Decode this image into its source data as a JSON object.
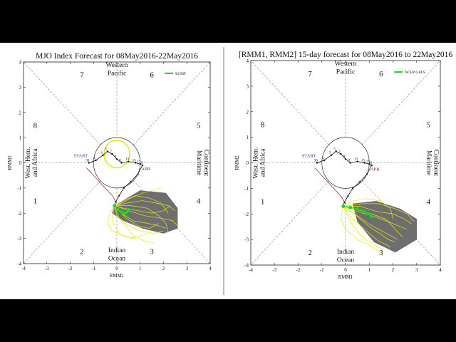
{
  "caption": "",
  "chart_data": [
    {
      "type": "scatter",
      "title": "MJO Index Forecast for 08May2016-22May2016",
      "xlabel": "RMM1",
      "ylabel": "RMM2",
      "xlim": [
        -4,
        4
      ],
      "ylim": [
        -4,
        4
      ],
      "xticks": [
        "-4",
        "-3",
        "-2",
        "-1",
        "0",
        "1",
        "2",
        "3",
        "4"
      ],
      "yticks": [
        "-4",
        "-3",
        "-2",
        "-1",
        "0",
        "1",
        "2",
        "3",
        "4"
      ],
      "phases": [
        "1",
        "2",
        "3",
        "4",
        "5",
        "6",
        "7",
        "8"
      ],
      "regions": {
        "top": [
          "Western",
          "Pacific"
        ],
        "bottom": [
          "Indian",
          "Ocean"
        ],
        "left": [
          "West. Hem.",
          "and Africa"
        ],
        "right": [
          "Maritime",
          "Continent"
        ]
      },
      "annotations": [
        "START",
        "APR"
      ],
      "legend": [
        {
          "name": "ECMF",
          "color": "#22dd22"
        }
      ],
      "legend_position": "top-right",
      "observed": {
        "color": "#111111",
        "x": [
          -1.2,
          -0.9,
          -0.6,
          -0.4,
          -0.2,
          0.0,
          0.2,
          0.5,
          0.8,
          1.0,
          1.1
        ],
        "y": [
          0.0,
          0.1,
          0.3,
          0.45,
          0.35,
          0.15,
          0.0,
          0.05,
          0.0,
          -0.05,
          -0.1
        ]
      },
      "observed_day_labels": [
        "30",
        "1",
        "3",
        "5",
        "7",
        "9",
        "11",
        "13",
        "15",
        "17",
        "19"
      ],
      "recent": {
        "color": "#111111",
        "x": [
          1.1,
          0.9,
          0.6,
          0.3,
          0.1,
          -0.05,
          -0.1
        ],
        "y": [
          -0.1,
          -0.45,
          -0.75,
          -1.0,
          -1.3,
          -1.55,
          -1.7
        ]
      },
      "previous_cycle": {
        "color": "#8b1a1a",
        "x": [
          -1.3,
          -1.0,
          -0.6,
          -0.2,
          0.0
        ],
        "y": [
          -0.2,
          -0.5,
          -0.9,
          -1.3,
          -1.6
        ]
      },
      "ensemble_mean": {
        "color": "#22dd22",
        "x": [
          -0.1,
          0.05,
          0.2,
          0.35,
          0.45,
          0.5
        ],
        "y": [
          -1.7,
          -1.85,
          -1.95,
          -2.0,
          -1.95,
          -1.85
        ]
      },
      "ensemble_members": {
        "color": "#e6e619",
        "members": [
          {
            "x": [
              -0.1,
              0.3,
              0.9,
              1.5,
              2.0,
              2.3
            ],
            "y": [
              -1.7,
              -1.8,
              -1.9,
              -2.0,
              -1.9,
              -1.7
            ]
          },
          {
            "x": [
              -0.1,
              0.2,
              0.7,
              1.3,
              1.8,
              2.1
            ],
            "y": [
              -1.7,
              -2.0,
              -2.3,
              -2.4,
              -2.5,
              -2.6
            ]
          },
          {
            "x": [
              -0.1,
              0.1,
              0.5,
              1.0,
              1.6,
              2.0
            ],
            "y": [
              -1.7,
              -2.2,
              -2.5,
              -2.7,
              -2.8,
              -2.7
            ]
          },
          {
            "x": [
              -0.1,
              -0.3,
              -0.4,
              -0.2,
              0.3,
              0.8
            ],
            "y": [
              -1.7,
              -2.0,
              -2.4,
              -2.7,
              -2.9,
              -3.0
            ]
          },
          {
            "x": [
              -0.1,
              0.4,
              1.1,
              1.7,
              2.2,
              2.5
            ],
            "y": [
              -1.7,
              -1.6,
              -1.5,
              -1.6,
              -1.7,
              -1.9
            ]
          },
          {
            "x": [
              -0.1,
              0.2,
              0.6,
              1.1,
              1.5,
              1.9
            ],
            "y": [
              -1.7,
              -1.6,
              -1.4,
              -1.2,
              -1.1,
              -1.0
            ]
          },
          {
            "x": [
              -0.1,
              0.0,
              0.3,
              0.7,
              1.2,
              1.6
            ],
            "y": [
              -1.7,
              -2.1,
              -2.4,
              -2.9,
              -3.1,
              -3.2
            ]
          },
          {
            "x": [
              -0.1,
              0.5,
              1.2,
              1.9,
              2.4,
              2.6
            ],
            "y": [
              -1.7,
              -1.9,
              -2.1,
              -2.2,
              -2.3,
              -2.5
            ]
          },
          {
            "x": [
              -0.1,
              -0.2,
              0.1,
              0.6,
              1.0,
              1.3
            ],
            "y": [
              -1.7,
              -2.3,
              -2.8,
              -3.0,
              -2.9,
              -2.8
            ]
          },
          {
            "x": [
              -0.1,
              0.3,
              0.8,
              1.4,
              1.9,
              2.2
            ],
            "y": [
              -1.7,
              -1.5,
              -1.3,
              -1.4,
              -1.6,
              -2.0
            ]
          },
          {
            "x": [
              -0.1,
              0.1,
              0.4,
              0.9,
              1.4,
              1.8
            ],
            "y": [
              -1.7,
              -1.9,
              -2.2,
              -2.5,
              -2.6,
              -2.4
            ]
          },
          {
            "x": [
              -0.1,
              0.6,
              1.3,
              1.8,
              2.1,
              2.2
            ],
            "y": [
              -1.7,
              -1.7,
              -1.8,
              -2.1,
              -2.4,
              -2.8
            ]
          }
        ]
      },
      "spread_polygon": {
        "color": "#6e6e6e",
        "x": [
          -0.1,
          1.0,
          2.1,
          2.6,
          2.6,
          2.0,
          1.1,
          0.3,
          -0.2
        ],
        "y": [
          -1.7,
          -1.1,
          -1.2,
          -1.8,
          -2.6,
          -2.8,
          -2.6,
          -2.3,
          -2.0
        ]
      },
      "highlight_circle": {
        "color": "#e6e619",
        "cx": 0.0,
        "cy": 0.35,
        "r": 0.55
      }
    },
    {
      "type": "scatter",
      "title": "[RMM1, RMM2] 15-day forecast for 08May2016 to 22May2016",
      "xlabel": "RMM1",
      "ylabel": "RMM2",
      "xlim": [
        -4,
        4
      ],
      "ylim": [
        -4,
        4
      ],
      "xticks": [
        "-4",
        "-3",
        "-2",
        "-1",
        "0",
        "1",
        "2",
        "3",
        "4"
      ],
      "yticks": [
        "-4",
        "-3",
        "-2",
        "-1",
        "0",
        "1",
        "2",
        "3",
        "4"
      ],
      "phases": [
        "1",
        "2",
        "3",
        "4",
        "5",
        "6",
        "7",
        "8"
      ],
      "regions": {
        "top": [
          "Western",
          "Pacific"
        ],
        "bottom": [
          "Indian",
          "Ocean"
        ],
        "left": [
          "West. Hem.",
          "and Africa"
        ],
        "right": [
          "Maritime",
          "Continent"
        ]
      },
      "annotations": [
        "START",
        "APR"
      ],
      "legend": [
        {
          "name": "NCEP GEFS",
          "color": "#22dd22"
        }
      ],
      "legend_position": "top-right",
      "observed": {
        "color": "#111111",
        "x": [
          -1.2,
          -0.9,
          -0.6,
          -0.4,
          -0.2,
          0.0,
          0.2,
          0.5,
          0.8,
          1.0,
          1.1
        ],
        "y": [
          0.0,
          0.1,
          0.3,
          0.45,
          0.35,
          0.15,
          0.0,
          0.05,
          0.0,
          -0.05,
          -0.1
        ]
      },
      "observed_day_labels": [
        "30",
        "1",
        "3",
        "5",
        "7",
        "9",
        "11",
        "13",
        "15",
        "17",
        "19"
      ],
      "recent": {
        "color": "#111111",
        "x": [
          1.1,
          0.9,
          0.6,
          0.3,
          0.1,
          -0.05,
          -0.1
        ],
        "y": [
          -0.1,
          -0.45,
          -0.75,
          -1.0,
          -1.3,
          -1.55,
          -1.7
        ]
      },
      "previous_cycle": {
        "color": "#8b1a1a",
        "x": [
          -1.3,
          -1.0,
          -0.6,
          -0.2,
          0.0
        ],
        "y": [
          -0.2,
          -0.5,
          -0.9,
          -1.3,
          -1.6
        ]
      },
      "ensemble_mean": {
        "color": "#22dd22",
        "x": [
          -0.1,
          0.2,
          0.5,
          0.8,
          1.0,
          1.1
        ],
        "y": [
          -1.7,
          -1.75,
          -1.8,
          -1.9,
          -2.0,
          -2.1
        ]
      },
      "ensemble_members": {
        "color": "#e6e619",
        "members": [
          {
            "x": [
              -0.1,
              0.5,
              1.2,
              1.8,
              2.3,
              2.6
            ],
            "y": [
              -1.7,
              -1.9,
              -2.1,
              -2.3,
              -2.5,
              -2.6
            ]
          },
          {
            "x": [
              -0.1,
              0.4,
              1.0,
              1.6,
              2.0,
              2.2
            ],
            "y": [
              -1.7,
              -2.0,
              -2.4,
              -2.7,
              -2.9,
              -3.0
            ]
          },
          {
            "x": [
              -0.1,
              0.3,
              0.8,
              1.3,
              1.7,
              1.9
            ],
            "y": [
              -1.7,
              -2.2,
              -2.6,
              -3.0,
              -3.2,
              -3.3
            ]
          },
          {
            "x": [
              -0.1,
              0.6,
              1.3,
              2.0,
              2.5,
              2.8
            ],
            "y": [
              -1.7,
              -1.7,
              -1.9,
              -2.0,
              -2.2,
              -2.4
            ]
          },
          {
            "x": [
              -0.1,
              0.2,
              0.6,
              1.0,
              1.4,
              1.6
            ],
            "y": [
              -1.7,
              -2.3,
              -2.8,
              -3.1,
              -3.3,
              -3.4
            ]
          },
          {
            "x": [
              -0.1,
              0.7,
              1.4,
              2.1,
              2.6,
              2.9
            ],
            "y": [
              -1.7,
              -1.6,
              -1.6,
              -1.8,
              -2.0,
              -2.3
            ]
          },
          {
            "x": [
              -0.1,
              -0.2,
              0.0,
              0.5,
              1.0,
              1.4
            ],
            "y": [
              -1.7,
              -2.2,
              -2.6,
              -3.0,
              -3.2,
              -3.5
            ]
          },
          {
            "x": [
              -0.1,
              0.4,
              1.1,
              1.7,
              2.1,
              2.4
            ],
            "y": [
              -1.7,
              -1.8,
              -2.0,
              -2.2,
              -2.6,
              -2.9
            ]
          },
          {
            "x": [
              -0.1,
              0.3,
              0.9,
              1.5,
              1.9,
              2.0
            ],
            "y": [
              -1.7,
              -1.5,
              -1.4,
              -1.5,
              -1.8,
              -2.2
            ]
          },
          {
            "x": [
              -0.1,
              0.5,
              1.0,
              1.5,
              1.8,
              2.1
            ],
            "y": [
              -1.7,
              -2.1,
              -2.5,
              -2.8,
              -3.0,
              -3.1
            ]
          }
        ]
      },
      "spread_polygon": {
        "color": "#6e6e6e",
        "x": [
          0.3,
          1.3,
          2.3,
          3.0,
          3.0,
          2.1,
          1.2,
          0.5
        ],
        "y": [
          -1.6,
          -1.5,
          -1.8,
          -2.2,
          -3.0,
          -3.5,
          -3.1,
          -2.3
        ]
      },
      "highlight_circle": null
    }
  ]
}
